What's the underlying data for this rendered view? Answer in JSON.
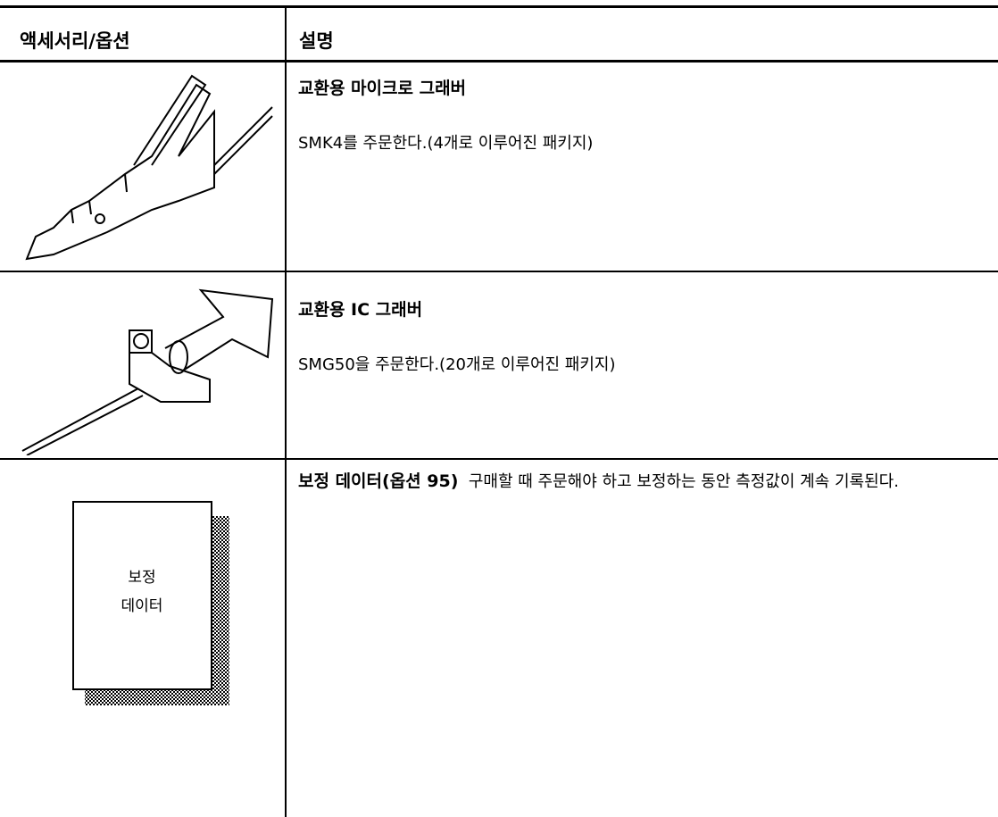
{
  "table": {
    "header": [
      "액세서리/옵션",
      "설명"
    ],
    "rows": [
      {
        "title": "교환용 마이크로 그래버",
        "description": "SMK4를 주문한다.(4개로 이루어진 패키지)"
      },
      {
        "title": "교환용 IC 그래버",
        "description": "SMG50을 주문한다.(20개로 이루어진 패키지)"
      },
      {
        "title": "보정 데이터(옵션 95)",
        "description": "구매할 때 주문해야 하고 보정하는 동안 측정값이 계속 기록된다.",
        "image_label": [
          "보정",
          "데이터"
        ]
      }
    ]
  }
}
